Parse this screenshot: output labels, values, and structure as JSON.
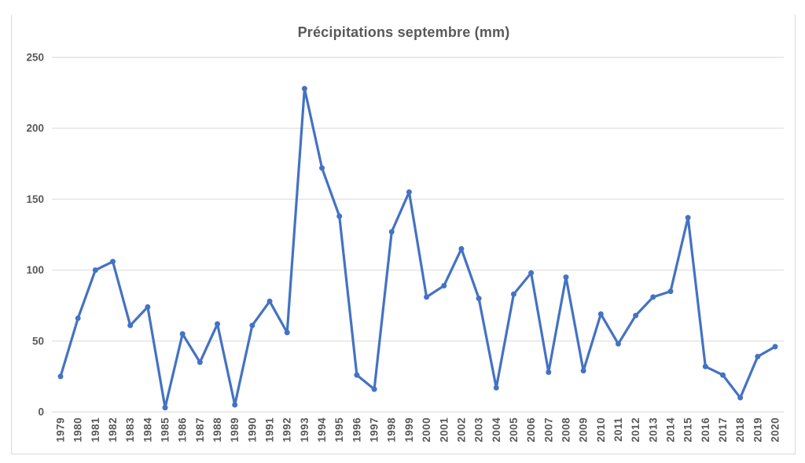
{
  "chart_data": {
    "type": "line",
    "title": "Précipitations septembre (mm)",
    "xlabel": "",
    "ylabel": "",
    "categories": [
      "1979",
      "1980",
      "1981",
      "1982",
      "1983",
      "1984",
      "1985",
      "1986",
      "1987",
      "1988",
      "1989",
      "1990",
      "1991",
      "1992",
      "1993",
      "1994",
      "1995",
      "1996",
      "1997",
      "1998",
      "1999",
      "2000",
      "2001",
      "2002",
      "2003",
      "2004",
      "2005",
      "2006",
      "2007",
      "2008",
      "2009",
      "2010",
      "2011",
      "2012",
      "2013",
      "2014",
      "2015",
      "2016",
      "2017",
      "2018",
      "2019",
      "2020"
    ],
    "values": [
      25,
      66,
      100,
      106,
      61,
      74,
      3,
      55,
      35,
      62,
      5,
      61,
      78,
      56,
      228,
      172,
      138,
      26,
      16,
      127,
      155,
      81,
      89,
      115,
      80,
      17,
      83,
      98,
      28,
      95,
      29,
      69,
      48,
      68,
      81,
      85,
      137,
      32,
      26,
      10,
      39,
      46
    ],
    "ylim": [
      0,
      250
    ],
    "yticks": [
      0,
      50,
      100,
      150,
      200,
      250
    ],
    "grid": true,
    "legend": false,
    "marker": "circle",
    "x_tick_rotation_deg": 90,
    "series_color": "#4472C4",
    "text_color": "#595959",
    "gridline_color": "#e3e3e3",
    "border_color": "#d9d9d9"
  }
}
